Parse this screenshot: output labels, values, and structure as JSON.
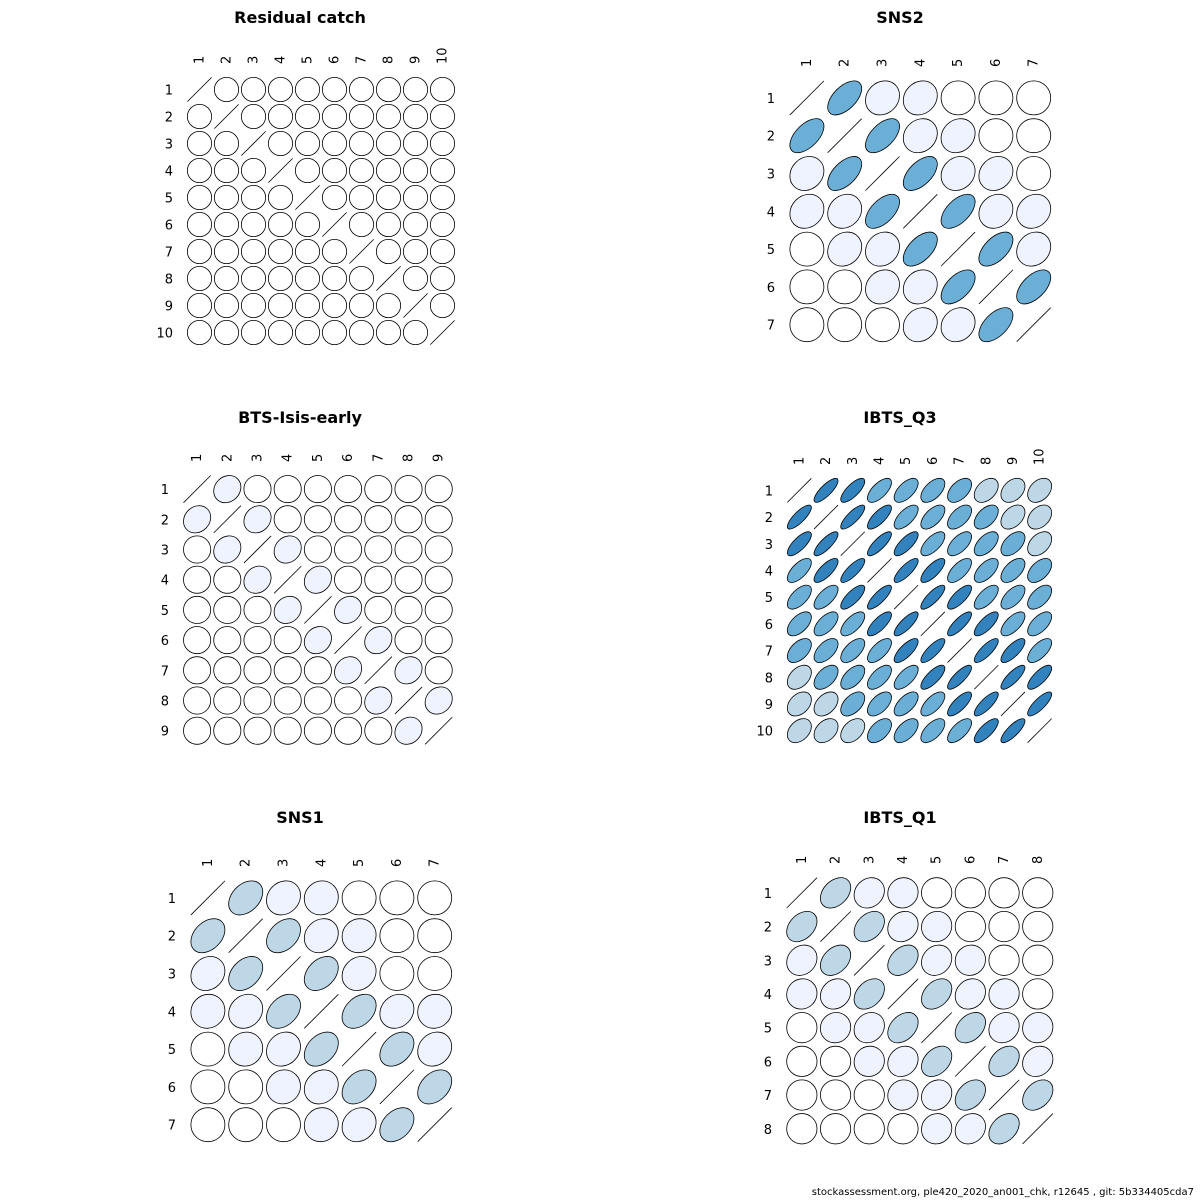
{
  "footer": "stockassessment.org, ple420_2020_an001_chk, r12645 , git: 5b334405cda7",
  "palette": [
    "#ffffff",
    "#eff3ff",
    "#bdd7e7",
    "#6baed6",
    "#3182bd"
  ],
  "chart_data": [
    {
      "type": "correlation-ellipse-matrix",
      "title": "Residual catch",
      "labels": [
        "1",
        "2",
        "3",
        "4",
        "5",
        "6",
        "7",
        "8",
        "9",
        "10"
      ],
      "matrix": [
        [
          1,
          0,
          0,
          0,
          0,
          0,
          0,
          0,
          0,
          0
        ],
        [
          0,
          1,
          0,
          0,
          0,
          0,
          0,
          0,
          0,
          0
        ],
        [
          0,
          0,
          1,
          0,
          0,
          0,
          0,
          0,
          0,
          0
        ],
        [
          0,
          0,
          0,
          1,
          0,
          0,
          0,
          0,
          0,
          0
        ],
        [
          0,
          0,
          0,
          0,
          1,
          0,
          0,
          0,
          0,
          0
        ],
        [
          0,
          0,
          0,
          0,
          0,
          1,
          0,
          0,
          0,
          0
        ],
        [
          0,
          0,
          0,
          0,
          0,
          0,
          1,
          0,
          0,
          0
        ],
        [
          0,
          0,
          0,
          0,
          0,
          0,
          0,
          1,
          0,
          0
        ],
        [
          0,
          0,
          0,
          0,
          0,
          0,
          0,
          0,
          1,
          0
        ],
        [
          0,
          0,
          0,
          0,
          0,
          0,
          0,
          0,
          0,
          1
        ]
      ]
    },
    {
      "type": "correlation-ellipse-matrix",
      "title": "SNS2",
      "labels": [
        "1",
        "2",
        "3",
        "4",
        "5",
        "6",
        "7"
      ],
      "matrix": [
        [
          1,
          0.55,
          0.15,
          0.15,
          0,
          0,
          0
        ],
        [
          0.55,
          1,
          0.55,
          0.15,
          0.15,
          0,
          0
        ],
        [
          0.15,
          0.55,
          1,
          0.55,
          0.15,
          0.15,
          0
        ],
        [
          0.15,
          0.15,
          0.55,
          1,
          0.55,
          0.15,
          0.15
        ],
        [
          0,
          0.15,
          0.15,
          0.55,
          1,
          0.55,
          0.15
        ],
        [
          0,
          0,
          0.15,
          0.15,
          0.55,
          1,
          0.55
        ],
        [
          0,
          0,
          0,
          0.15,
          0.15,
          0.55,
          1
        ]
      ]
    },
    {
      "type": "correlation-ellipse-matrix",
      "title": "BTS-Isis-early",
      "labels": [
        "1",
        "2",
        "3",
        "4",
        "5",
        "6",
        "7",
        "8",
        "9"
      ],
      "matrix": [
        [
          1,
          0.15,
          0,
          0,
          0,
          0,
          0,
          0,
          0
        ],
        [
          0.15,
          1,
          0.15,
          0,
          0,
          0,
          0,
          0,
          0
        ],
        [
          0,
          0.15,
          1,
          0.15,
          0,
          0,
          0,
          0,
          0
        ],
        [
          0,
          0,
          0.15,
          1,
          0.15,
          0,
          0,
          0,
          0
        ],
        [
          0,
          0,
          0,
          0.15,
          1,
          0.15,
          0,
          0,
          0
        ],
        [
          0,
          0,
          0,
          0,
          0.15,
          1,
          0.15,
          0,
          0
        ],
        [
          0,
          0,
          0,
          0,
          0,
          0.15,
          1,
          0.15,
          0
        ],
        [
          0,
          0,
          0,
          0,
          0,
          0,
          0.15,
          1,
          0.15
        ],
        [
          0,
          0,
          0,
          0,
          0,
          0,
          0,
          0.15,
          1
        ]
      ]
    },
    {
      "type": "correlation-ellipse-matrix",
      "title": "IBTS_Q3",
      "labels": [
        "1",
        "2",
        "3",
        "4",
        "5",
        "6",
        "7",
        "8",
        "9",
        "10"
      ],
      "matrix": [
        [
          1,
          0.8,
          0.75,
          0.65,
          0.6,
          0.55,
          0.5,
          0.4,
          0.35,
          0.35
        ],
        [
          0.8,
          1,
          0.8,
          0.75,
          0.65,
          0.6,
          0.55,
          0.5,
          0.4,
          0.35
        ],
        [
          0.75,
          0.8,
          1,
          0.8,
          0.75,
          0.65,
          0.6,
          0.55,
          0.5,
          0.4
        ],
        [
          0.65,
          0.75,
          0.8,
          1,
          0.8,
          0.75,
          0.65,
          0.6,
          0.55,
          0.5
        ],
        [
          0.6,
          0.65,
          0.75,
          0.8,
          1,
          0.8,
          0.75,
          0.65,
          0.6,
          0.55
        ],
        [
          0.55,
          0.6,
          0.65,
          0.75,
          0.8,
          1,
          0.8,
          0.75,
          0.65,
          0.6
        ],
        [
          0.5,
          0.55,
          0.6,
          0.65,
          0.75,
          0.8,
          1,
          0.8,
          0.75,
          0.65
        ],
        [
          0.4,
          0.5,
          0.55,
          0.6,
          0.65,
          0.75,
          0.8,
          1,
          0.8,
          0.75
        ],
        [
          0.35,
          0.4,
          0.5,
          0.55,
          0.6,
          0.65,
          0.75,
          0.8,
          1,
          0.8
        ],
        [
          0.35,
          0.35,
          0.4,
          0.5,
          0.55,
          0.6,
          0.65,
          0.75,
          0.8,
          1
        ]
      ]
    },
    {
      "type": "correlation-ellipse-matrix",
      "title": "SNS1",
      "labels": [
        "1",
        "2",
        "3",
        "4",
        "5",
        "6",
        "7"
      ],
      "matrix": [
        [
          1,
          0.35,
          0.15,
          0.05,
          0,
          0,
          0
        ],
        [
          0.35,
          1,
          0.35,
          0.15,
          0.05,
          0,
          0
        ],
        [
          0.15,
          0.35,
          1,
          0.35,
          0.15,
          0,
          0
        ],
        [
          0.05,
          0.15,
          0.35,
          1,
          0.35,
          0.15,
          0.05
        ],
        [
          0,
          0.05,
          0.15,
          0.35,
          1,
          0.35,
          0.15
        ],
        [
          0,
          0,
          0.05,
          0.15,
          0.35,
          1,
          0.35
        ],
        [
          0,
          0,
          0,
          0.05,
          0.15,
          0.35,
          1
        ]
      ]
    },
    {
      "type": "correlation-ellipse-matrix",
      "title": "IBTS_Q1",
      "labels": [
        "1",
        "2",
        "3",
        "4",
        "5",
        "6",
        "7",
        "8"
      ],
      "matrix": [
        [
          1,
          0.35,
          0.15,
          0.05,
          0,
          0,
          0,
          0
        ],
        [
          0.35,
          1,
          0.35,
          0.15,
          0.05,
          0,
          0,
          0
        ],
        [
          0.15,
          0.35,
          1,
          0.35,
          0.15,
          0.05,
          0,
          0
        ],
        [
          0.05,
          0.15,
          0.35,
          1,
          0.35,
          0.15,
          0.05,
          0
        ],
        [
          0,
          0.05,
          0.15,
          0.35,
          1,
          0.35,
          0.15,
          0.05
        ],
        [
          0,
          0,
          0.05,
          0.15,
          0.35,
          1,
          0.35,
          0.15
        ],
        [
          0,
          0,
          0,
          0.05,
          0.15,
          0.35,
          1,
          0.35
        ],
        [
          0,
          0,
          0,
          0,
          0.05,
          0.15,
          0.35,
          1
        ]
      ]
    }
  ]
}
